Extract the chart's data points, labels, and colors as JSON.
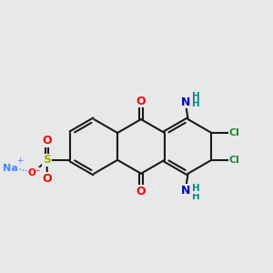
{
  "bg_color": "#e8e8e8",
  "bond_color": "#1a1a1a",
  "bond_width": 1.5,
  "dbo": 0.05,
  "atom_colors": {
    "O": "#ff0000",
    "S": "#aaaa00",
    "Na": "#4488ff",
    "N": "#0000bb",
    "Cl": "#228833",
    "H": "#008888",
    "C": "#1a1a1a"
  },
  "fs_large": 9,
  "fs_med": 8,
  "fs_small": 7.5
}
